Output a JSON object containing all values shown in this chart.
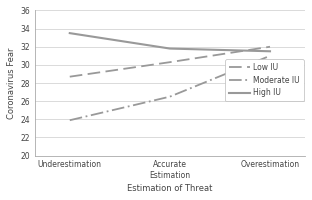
{
  "x_labels": [
    "Underestimation",
    "Accurate\nEstimation",
    "Overestimation"
  ],
  "x_positions": [
    0,
    1,
    2
  ],
  "low_iu": [
    28.7,
    30.3,
    32.0
  ],
  "moderate_iu": [
    23.9,
    26.5,
    31.0
  ],
  "high_iu": [
    33.5,
    31.8,
    31.5
  ],
  "ylim": [
    20,
    36
  ],
  "yticks": [
    20,
    22,
    24,
    26,
    28,
    30,
    32,
    34,
    36
  ],
  "xlabel": "Estimation of Threat",
  "ylabel": "Coronavirus Fear",
  "legend_labels": [
    "Low IU",
    "Moderate IU",
    "High IU"
  ],
  "line_color": "#999999",
  "bg_color": "#ffffff",
  "label_fontsize": 6.0,
  "tick_fontsize": 5.5,
  "legend_fontsize": 5.5
}
